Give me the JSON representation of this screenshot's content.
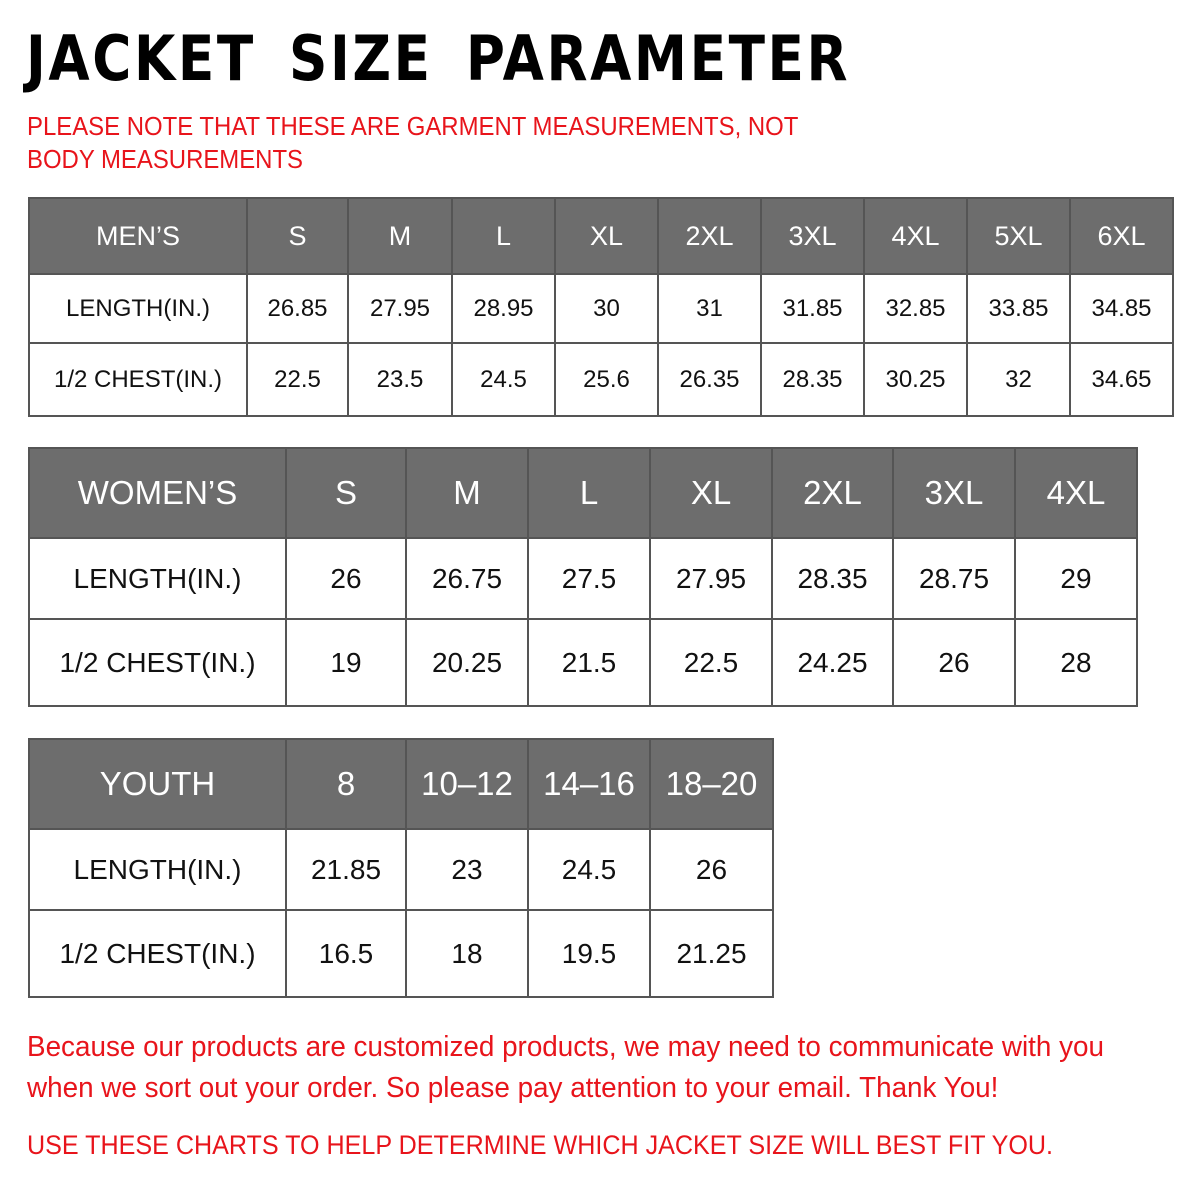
{
  "title": "JACKET SIZE PARAMETER",
  "note": "PLEASE NOTE THAT THESE ARE GARMENT MEASUREMENTS, NOT BODY MEASUREMENTS",
  "colors": {
    "header_bg": "#6d6d6d",
    "accent_red": "#e8141b"
  },
  "tables": {
    "men": {
      "headers": [
        "MEN’S",
        "S",
        "M",
        "L",
        "XL",
        "2XL",
        "3XL",
        "4XL",
        "5XL",
        "6XL"
      ],
      "rows": [
        [
          "LENGTH(IN.)",
          "26.85",
          "27.95",
          "28.95",
          "30",
          "31",
          "31.85",
          "32.85",
          "33.85",
          "34.85"
        ],
        [
          "1/2 CHEST(IN.)",
          "22.5",
          "23.5",
          "24.5",
          "25.6",
          "26.35",
          "28.35",
          "30.25",
          "32",
          "34.65"
        ]
      ]
    },
    "women": {
      "headers": [
        "WOMEN’S",
        "S",
        "M",
        "L",
        "XL",
        "2XL",
        "3XL",
        "4XL"
      ],
      "rows": [
        [
          "LENGTH(IN.)",
          "26",
          "26.75",
          "27.5",
          "27.95",
          "28.35",
          "28.75",
          "29"
        ],
        [
          "1/2 CHEST(IN.)",
          "19",
          "20.25",
          "21.5",
          "22.5",
          "24.25",
          "26",
          "28"
        ]
      ]
    },
    "youth": {
      "headers": [
        "YOUTH",
        "8",
        "10–12",
        "14–16",
        "18–20"
      ],
      "rows": [
        [
          "LENGTH(IN.)",
          "21.85",
          "23",
          "24.5",
          "26"
        ],
        [
          "1/2 CHEST(IN.)",
          "16.5",
          "18",
          "19.5",
          "21.25"
        ]
      ]
    }
  },
  "footer": "Because our products are customized products, we may need to communicate with you when we sort out your order. So please pay attention to your email. Thank You!",
  "footer2": "USE THESE CHARTS TO HELP DETERMINE WHICH JACKET SIZE WILL BEST FIT YOU."
}
